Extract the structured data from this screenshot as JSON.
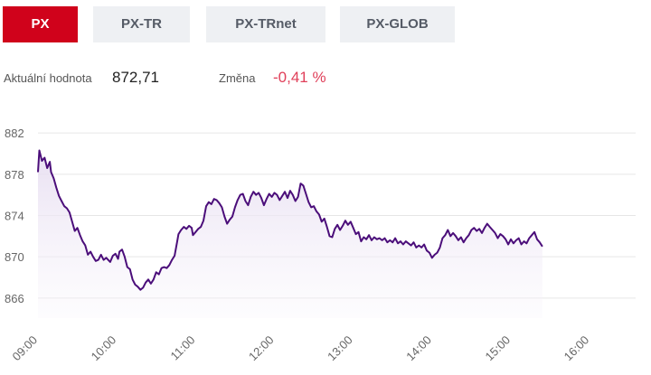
{
  "tabs": [
    {
      "label": "PX",
      "active": true
    },
    {
      "label": "PX-TR",
      "active": false
    },
    {
      "label": "PX-TRnet",
      "active": false
    },
    {
      "label": "PX-GLOB",
      "active": false
    }
  ],
  "stats": {
    "value_label": "Aktuální hodnota",
    "value": "872,71",
    "change_label": "Změna",
    "change": "-0,41 %"
  },
  "colors": {
    "accent": "#d0021b",
    "line": "#4b0e7a",
    "fill": "#efe9f6",
    "change_negative": "#e0405a",
    "grid": "#e6e6e6"
  },
  "chart_data": {
    "type": "area",
    "ylim": [
      864.5,
      883.5
    ],
    "yticks": [
      {
        "value": 882,
        "label": "882"
      },
      {
        "value": 878,
        "label": "878"
      },
      {
        "value": 874,
        "label": "874"
      },
      {
        "value": 870,
        "label": "870"
      },
      {
        "value": 866,
        "label": "866"
      }
    ],
    "xlim": [
      "09:00",
      "16:35"
    ],
    "xticks": [
      "09:00",
      "10:00",
      "11:00",
      "12:00",
      "13:00",
      "14:00",
      "15:00",
      "16:00"
    ],
    "grid": true,
    "series": [
      {
        "points": [
          [
            "09:00",
            878.2
          ],
          [
            "09:01",
            880.3
          ],
          [
            "09:03",
            879.3
          ],
          [
            "09:05",
            879.6
          ],
          [
            "09:07",
            878.6
          ],
          [
            "09:09",
            879.2
          ],
          [
            "09:10",
            878.2
          ],
          [
            "09:12",
            877.6
          ],
          [
            "09:14",
            876.7
          ],
          [
            "09:16",
            875.9
          ],
          [
            "09:18",
            875.4
          ],
          [
            "09:20",
            874.9
          ],
          [
            "09:22",
            874.7
          ],
          [
            "09:24",
            874.3
          ],
          [
            "09:26",
            873.4
          ],
          [
            "09:28",
            872.5
          ],
          [
            "09:30",
            872.8
          ],
          [
            "09:32",
            872.1
          ],
          [
            "09:34",
            871.5
          ],
          [
            "09:36",
            871.1
          ],
          [
            "09:38",
            870.2
          ],
          [
            "09:40",
            870.5
          ],
          [
            "09:42",
            870.0
          ],
          [
            "09:44",
            869.6
          ],
          [
            "09:46",
            869.7
          ],
          [
            "09:48",
            870.2
          ],
          [
            "09:50",
            869.7
          ],
          [
            "09:52",
            869.9
          ],
          [
            "09:55",
            869.5
          ],
          [
            "09:57",
            870.1
          ],
          [
            "09:59",
            870.3
          ],
          [
            "10:01",
            869.8
          ],
          [
            "10:02",
            870.5
          ],
          [
            "10:04",
            870.7
          ],
          [
            "10:06",
            870.0
          ],
          [
            "10:08",
            869.0
          ],
          [
            "10:10",
            868.8
          ],
          [
            "10:12",
            867.8
          ],
          [
            "10:14",
            867.3
          ],
          [
            "10:16",
            867.1
          ],
          [
            "10:18",
            866.8
          ],
          [
            "10:20",
            867.0
          ],
          [
            "10:22",
            867.5
          ],
          [
            "10:24",
            867.8
          ],
          [
            "10:26",
            867.4
          ],
          [
            "10:28",
            867.8
          ],
          [
            "10:30",
            868.5
          ],
          [
            "10:32",
            868.3
          ],
          [
            "10:34",
            868.9
          ],
          [
            "10:36",
            869.0
          ],
          [
            "10:38",
            868.9
          ],
          [
            "10:40",
            869.2
          ],
          [
            "10:42",
            869.7
          ],
          [
            "10:44",
            870.1
          ],
          [
            "10:46",
            871.5
          ],
          [
            "10:47",
            872.2
          ],
          [
            "10:49",
            872.6
          ],
          [
            "10:51",
            872.9
          ],
          [
            "10:53",
            872.7
          ],
          [
            "10:55",
            873.0
          ],
          [
            "10:57",
            872.8
          ],
          [
            "10:58",
            872.1
          ],
          [
            "11:00",
            872.4
          ],
          [
            "11:02",
            872.7
          ],
          [
            "11:04",
            872.9
          ],
          [
            "11:06",
            873.5
          ],
          [
            "11:08",
            874.9
          ],
          [
            "11:10",
            875.3
          ],
          [
            "11:12",
            875.1
          ],
          [
            "11:14",
            875.6
          ],
          [
            "11:16",
            875.5
          ],
          [
            "11:18",
            875.2
          ],
          [
            "11:20",
            874.8
          ],
          [
            "11:22",
            873.9
          ],
          [
            "11:24",
            873.2
          ],
          [
            "11:26",
            873.6
          ],
          [
            "11:28",
            873.9
          ],
          [
            "11:30",
            874.8
          ],
          [
            "11:32",
            875.5
          ],
          [
            "11:34",
            876.0
          ],
          [
            "11:36",
            876.1
          ],
          [
            "11:38",
            875.4
          ],
          [
            "11:40",
            875.0
          ],
          [
            "11:42",
            875.8
          ],
          [
            "11:44",
            876.3
          ],
          [
            "11:46",
            876.0
          ],
          [
            "11:48",
            876.2
          ],
          [
            "11:50",
            875.7
          ],
          [
            "11:52",
            875.0
          ],
          [
            "11:54",
            875.6
          ],
          [
            "11:56",
            876.1
          ],
          [
            "11:58",
            875.8
          ],
          [
            "12:00",
            876.2
          ],
          [
            "12:02",
            876.0
          ],
          [
            "12:04",
            875.5
          ],
          [
            "12:06",
            875.9
          ],
          [
            "12:08",
            876.3
          ],
          [
            "12:10",
            875.7
          ],
          [
            "12:12",
            876.4
          ],
          [
            "12:14",
            876.0
          ],
          [
            "12:16",
            875.4
          ],
          [
            "12:18",
            875.8
          ],
          [
            "12:20",
            877.1
          ],
          [
            "12:22",
            876.9
          ],
          [
            "12:24",
            876.1
          ],
          [
            "12:26",
            875.3
          ],
          [
            "12:28",
            874.8
          ],
          [
            "12:30",
            874.9
          ],
          [
            "12:32",
            874.4
          ],
          [
            "12:34",
            874.1
          ],
          [
            "12:36",
            873.4
          ],
          [
            "12:38",
            873.7
          ],
          [
            "12:40",
            872.9
          ],
          [
            "12:42",
            872.0
          ],
          [
            "12:44",
            871.9
          ],
          [
            "12:46",
            872.7
          ],
          [
            "12:48",
            873.1
          ],
          [
            "12:50",
            872.6
          ],
          [
            "12:52",
            873.0
          ],
          [
            "12:54",
            873.5
          ],
          [
            "12:56",
            873.1
          ],
          [
            "12:58",
            873.4
          ],
          [
            "13:00",
            872.8
          ],
          [
            "13:02",
            872.2
          ],
          [
            "13:04",
            872.4
          ],
          [
            "13:06",
            871.5
          ],
          [
            "13:08",
            871.9
          ],
          [
            "13:10",
            871.7
          ],
          [
            "13:12",
            872.1
          ],
          [
            "13:14",
            871.6
          ],
          [
            "13:16",
            871.9
          ],
          [
            "13:18",
            871.7
          ],
          [
            "13:20",
            871.8
          ],
          [
            "13:22",
            871.6
          ],
          [
            "13:24",
            871.8
          ],
          [
            "13:26",
            871.4
          ],
          [
            "13:28",
            871.6
          ],
          [
            "13:30",
            871.4
          ],
          [
            "13:32",
            871.8
          ],
          [
            "13:34",
            871.3
          ],
          [
            "13:36",
            871.5
          ],
          [
            "13:38",
            871.2
          ],
          [
            "13:40",
            871.5
          ],
          [
            "13:42",
            871.3
          ],
          [
            "13:44",
            871.1
          ],
          [
            "13:46",
            871.4
          ],
          [
            "13:48",
            870.9
          ],
          [
            "13:50",
            871.1
          ],
          [
            "13:52",
            870.9
          ],
          [
            "13:54",
            871.2
          ],
          [
            "13:56",
            870.6
          ],
          [
            "13:58",
            870.4
          ],
          [
            "14:00",
            869.9
          ],
          [
            "14:02",
            870.2
          ],
          [
            "14:04",
            870.4
          ],
          [
            "14:06",
            870.9
          ],
          [
            "14:08",
            871.8
          ],
          [
            "14:10",
            872.1
          ],
          [
            "14:12",
            872.6
          ],
          [
            "14:14",
            872.0
          ],
          [
            "14:16",
            872.3
          ],
          [
            "14:18",
            872.0
          ],
          [
            "14:20",
            871.6
          ],
          [
            "14:22",
            871.9
          ],
          [
            "14:24",
            871.4
          ],
          [
            "14:26",
            871.8
          ],
          [
            "14:28",
            872.1
          ],
          [
            "14:30",
            872.6
          ],
          [
            "14:32",
            872.8
          ],
          [
            "14:34",
            872.5
          ],
          [
            "14:36",
            872.7
          ],
          [
            "14:38",
            872.3
          ],
          [
            "14:40",
            872.8
          ],
          [
            "14:42",
            873.2
          ],
          [
            "14:44",
            872.9
          ],
          [
            "14:46",
            872.6
          ],
          [
            "14:48",
            872.3
          ],
          [
            "14:50",
            871.8
          ],
          [
            "14:52",
            872.2
          ],
          [
            "14:54",
            872.0
          ],
          [
            "14:56",
            871.7
          ],
          [
            "14:58",
            871.2
          ],
          [
            "15:00",
            871.7
          ],
          [
            "15:02",
            871.3
          ],
          [
            "15:04",
            871.6
          ],
          [
            "15:06",
            871.8
          ],
          [
            "15:08",
            871.2
          ],
          [
            "15:10",
            871.5
          ],
          [
            "15:12",
            871.3
          ],
          [
            "15:14",
            871.8
          ],
          [
            "15:16",
            872.1
          ],
          [
            "15:18",
            872.4
          ],
          [
            "15:20",
            871.7
          ],
          [
            "15:22",
            871.4
          ],
          [
            "15:24",
            871.0
          ]
        ]
      }
    ]
  }
}
